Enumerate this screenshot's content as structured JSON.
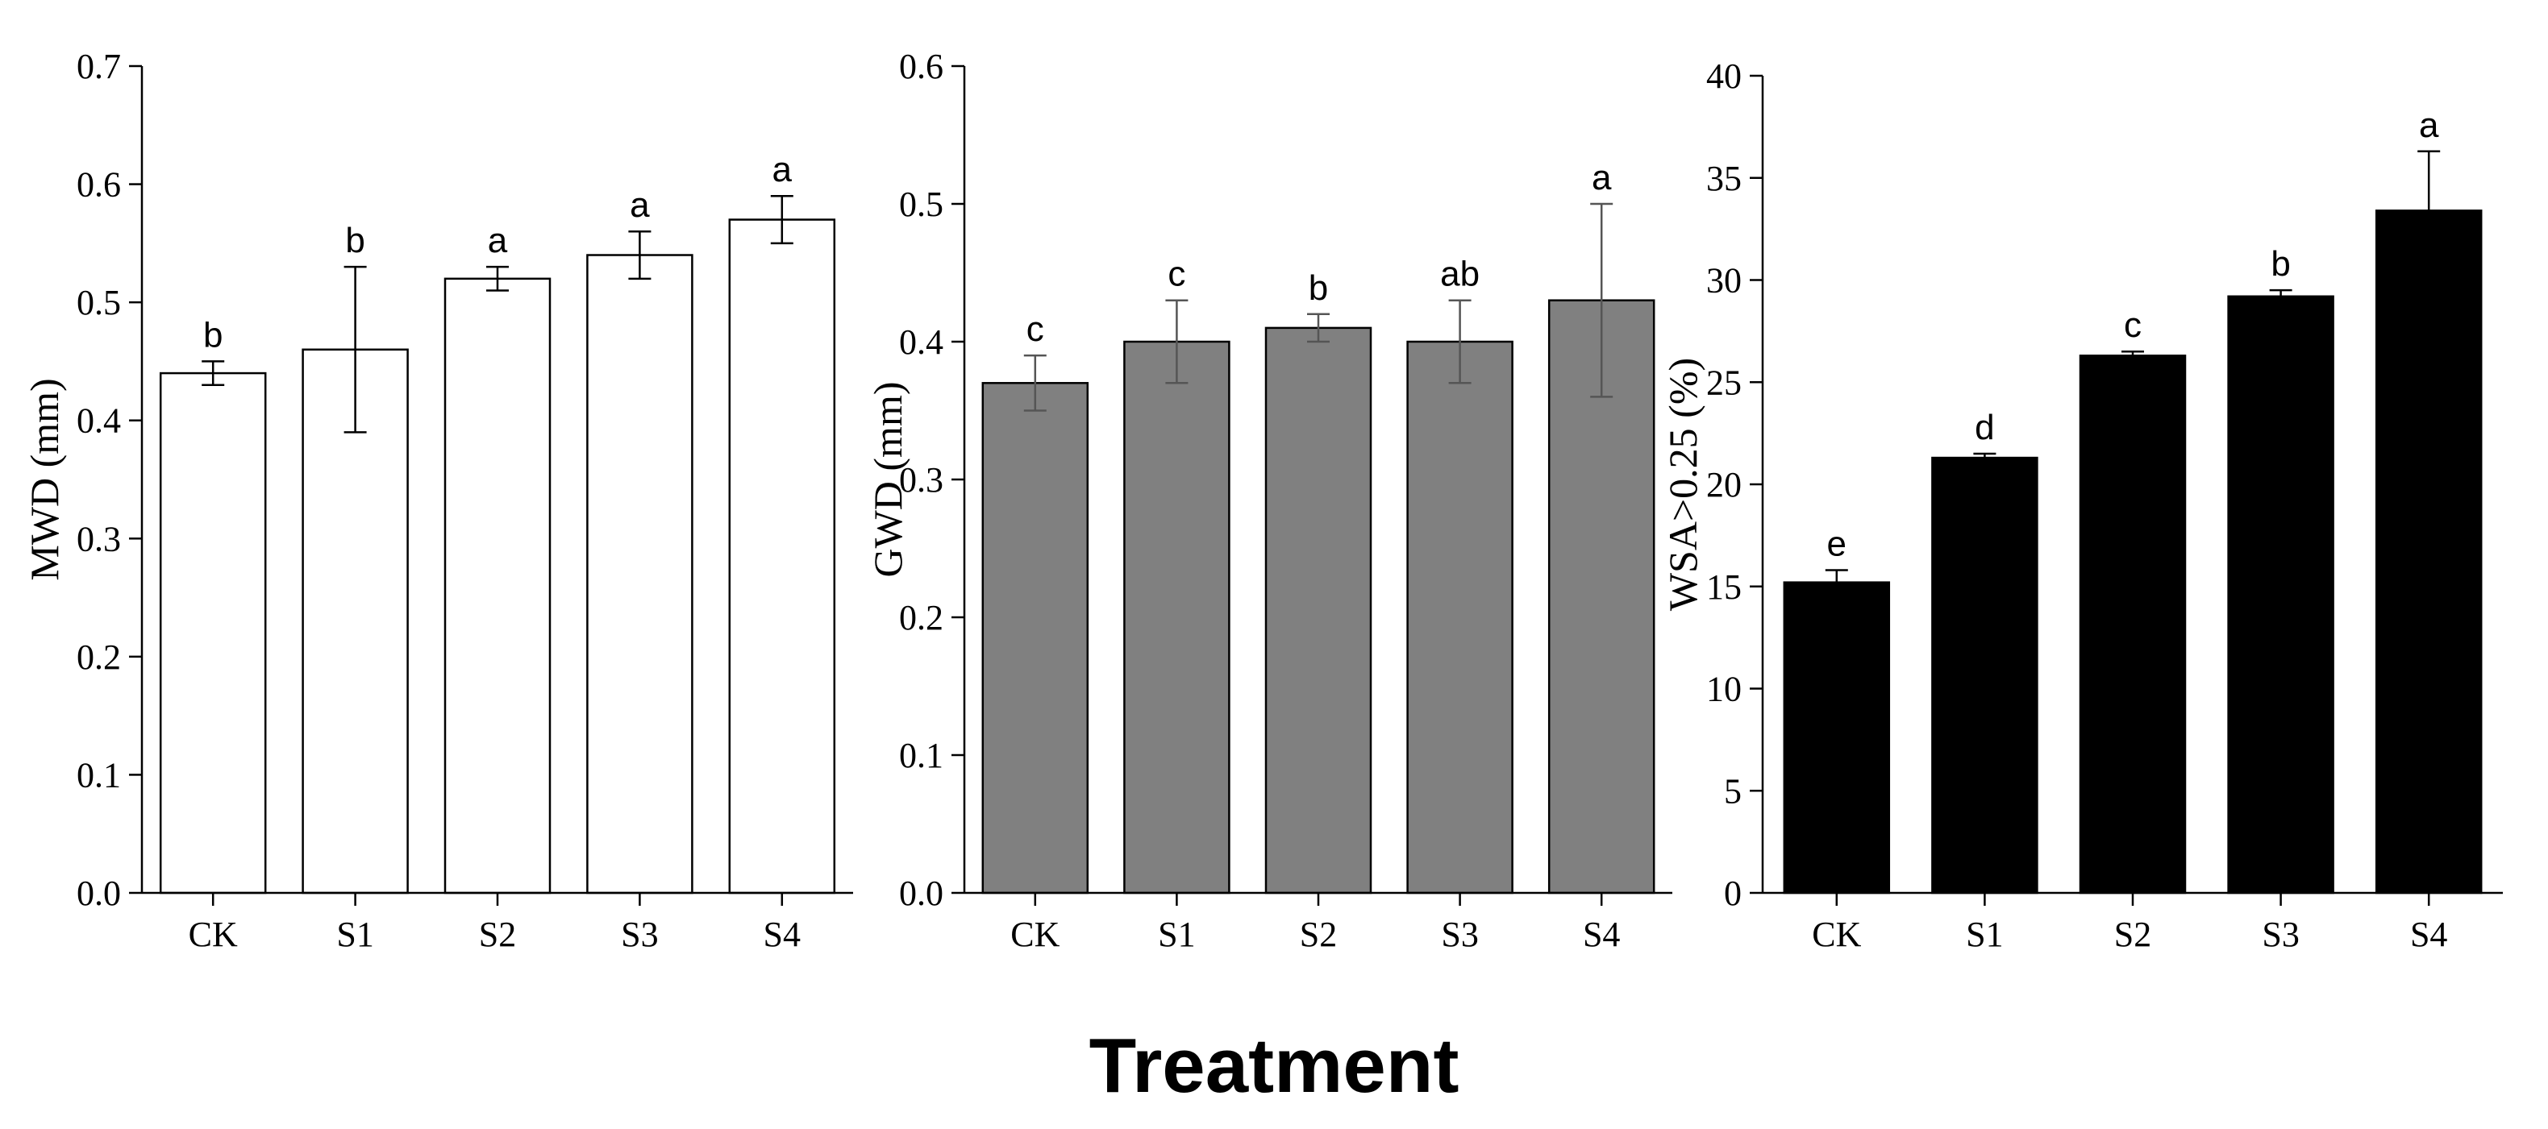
{
  "figure": {
    "shared_xlabel": "Treatment"
  },
  "chart_data": [
    {
      "type": "bar",
      "title": "",
      "xlabel": "",
      "ylabel": "MWD (mm)",
      "categories": [
        "CK",
        "S1",
        "S2",
        "S3",
        "S4"
      ],
      "values": [
        0.44,
        0.46,
        0.52,
        0.54,
        0.57
      ],
      "errors": [
        0.01,
        0.07,
        0.01,
        0.02,
        0.02
      ],
      "letters": [
        "b",
        "b",
        "a",
        "a",
        "a"
      ],
      "ylim": [
        0,
        0.7
      ],
      "yticks": [
        0.0,
        0.1,
        0.2,
        0.3,
        0.4,
        0.5,
        0.6,
        0.7
      ],
      "ytick_labels": [
        "0.0",
        "0.1",
        "0.2",
        "0.3",
        "0.4",
        "0.5",
        "0.6",
        "0.7"
      ],
      "bar_color": "#ffffff",
      "bar_stroke": "#000000",
      "error_color": "#000000",
      "grid": false
    },
    {
      "type": "bar",
      "title": "",
      "xlabel": "",
      "ylabel": "GWD (mm)",
      "categories": [
        "CK",
        "S1",
        "S2",
        "S3",
        "S4"
      ],
      "values": [
        0.37,
        0.4,
        0.41,
        0.4,
        0.43
      ],
      "errors": [
        0.02,
        0.03,
        0.01,
        0.03,
        0.07
      ],
      "letters": [
        "c",
        "c",
        "b",
        "ab",
        "a"
      ],
      "ylim": [
        0,
        0.6
      ],
      "yticks": [
        0.0,
        0.1,
        0.2,
        0.3,
        0.4,
        0.5,
        0.6
      ],
      "ytick_labels": [
        "0.0",
        "0.1",
        "0.2",
        "0.3",
        "0.4",
        "0.5",
        "0.6"
      ],
      "bar_color": "#808080",
      "bar_stroke": "#000000",
      "error_color": "#555555",
      "grid": false
    },
    {
      "type": "bar",
      "title": "",
      "xlabel": "",
      "ylabel": "WSA>0.25 (%)",
      "categories": [
        "CK",
        "S1",
        "S2",
        "S3",
        "S4"
      ],
      "values": [
        15.2,
        21.3,
        26.3,
        29.2,
        33.4
      ],
      "errors": [
        0.6,
        0.2,
        0.2,
        0.3,
        2.9
      ],
      "letters": [
        "e",
        "d",
        "c",
        "b",
        "a"
      ],
      "ylim": [
        0,
        40
      ],
      "yticks": [
        0,
        5,
        10,
        15,
        20,
        25,
        30,
        35,
        40
      ],
      "ytick_labels": [
        "0",
        "5",
        "10",
        "15",
        "20",
        "25",
        "30",
        "35",
        "40"
      ],
      "bar_color": "#000000",
      "bar_stroke": "#000000",
      "error_color": "#000000",
      "grid": false
    }
  ]
}
